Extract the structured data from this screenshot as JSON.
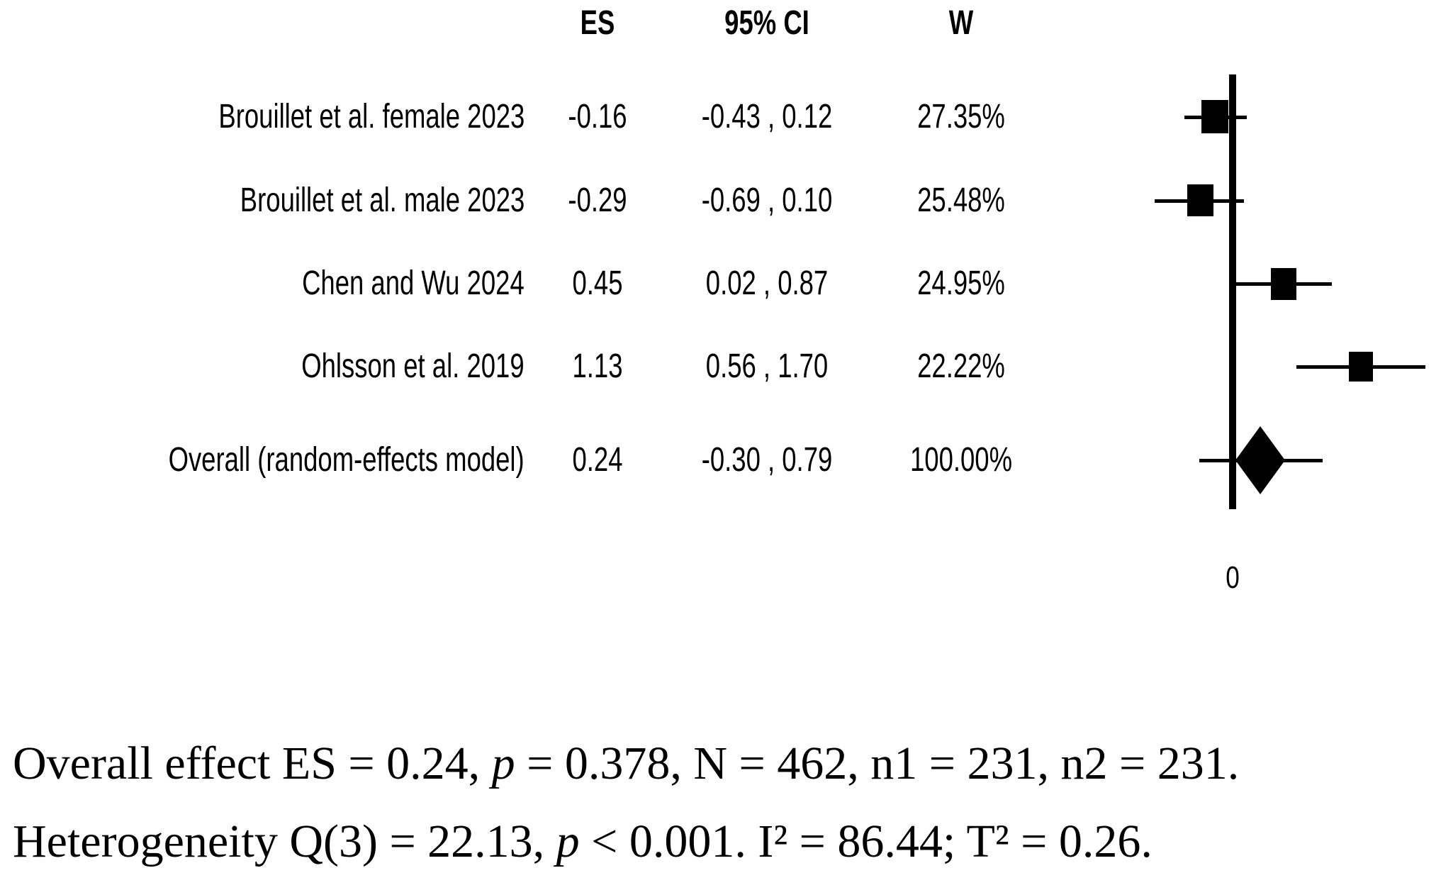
{
  "chart_data": {
    "type": "forest",
    "title": "",
    "columns": {
      "es": "ES",
      "ci": "95% CI",
      "w": "W"
    },
    "studies": [
      {
        "label": "Brouillet et al. female 2023",
        "es": -0.16,
        "ci_low": -0.43,
        "ci_high": 0.12,
        "weight": 27.35,
        "es_text": "-0.16",
        "ci_text": "-0.43 , 0.12",
        "w_text": "27.35%"
      },
      {
        "label": "Brouillet et al. male 2023",
        "es": -0.29,
        "ci_low": -0.69,
        "ci_high": 0.1,
        "weight": 25.48,
        "es_text": "-0.29",
        "ci_text": "-0.69 , 0.10",
        "w_text": "25.48%"
      },
      {
        "label": "Chen and Wu 2024",
        "es": 0.45,
        "ci_low": 0.02,
        "ci_high": 0.87,
        "weight": 24.95,
        "es_text": "0.45",
        "ci_text": "0.02 , 0.87",
        "w_text": "24.95%"
      },
      {
        "label": "Ohlsson et al. 2019",
        "es": 1.13,
        "ci_low": 0.56,
        "ci_high": 1.7,
        "weight": 22.22,
        "es_text": "1.13",
        "ci_text": "0.56 , 1.70",
        "w_text": "22.22%"
      }
    ],
    "overall": {
      "label": "Overall (random-effects model)",
      "es": 0.24,
      "ci_low": -0.3,
      "ci_high": 0.79,
      "weight": 100.0,
      "es_text": "0.24",
      "ci_text": "-0.30 , 0.79",
      "w_text": "100.00%"
    },
    "axis": {
      "tick_label": "0",
      "tick_value": 0,
      "xmin": -0.9,
      "xmax": 1.85
    },
    "marker_color": "#000000",
    "legend": "none",
    "grid": false
  },
  "footer": {
    "line1": [
      {
        "t": "Overall effect ES = 0.24, "
      },
      {
        "t": "p",
        "i": true
      },
      {
        "t": " = 0.378, N = 462, n1 = 231, n2 = 231."
      }
    ],
    "line2": [
      {
        "t": "Heterogeneity Q(3) = 22.13, "
      },
      {
        "t": "p",
        "i": true
      },
      {
        "t": " < 0.001. I² = 86.44; T² = 0.26."
      }
    ]
  }
}
